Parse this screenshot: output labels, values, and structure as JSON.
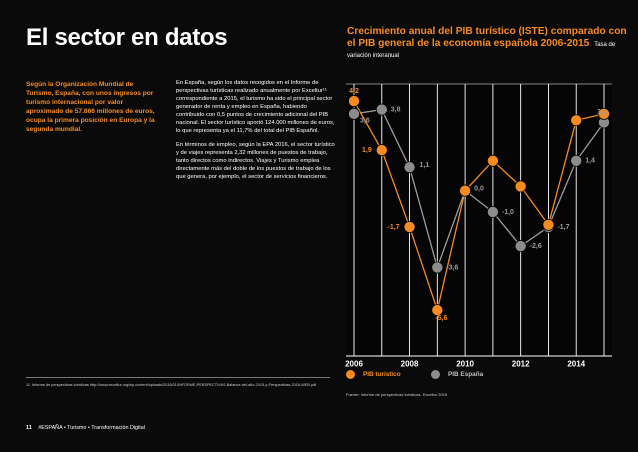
{
  "page": {
    "title": "El sector en datos",
    "intro": "Según la Organización Mundial de Turismo, España, con unos ingresos por turismo internacional por valor aproximado de 57.866 millones de euros, ocupa la primera posición en Europa y la segunda mundial.",
    "body_paragraphs": [
      "En España, según los datos recogidos en el Informe de perspectivas turísticas realizado anualmente por Exceltur¹¹ correspondiente a 2015, el turismo ha sido el principal sector generador de renta y empleo en España, habiendo contribuido con 0,5 puntos de crecimiento adicional del PIB nacional. El sector turístico aportó 124.000 millones de euros, lo que representa ya el 11,7% del total del PIB Español.",
      "En términos de empleo, según la EPA 2016, el sector turístico y de viajes representa 2,32 millones de puestos de trabajo, tanto directos como indirectos. Viajes y Turismo emplea directamente más del doble de los puestos de trabajo de los que genera, por ejemplo, el sector de servicios financieros."
    ],
    "footnote": "11. Informe de perspectivas turísticas http://www.exceltur.org/wp-content/uploads/2016/01/INFORME-PERSPECTIVAS-Balance-del-año-2015-y-Perspectivas-2016-WEB.pdf",
    "footer_page": "11",
    "footer_text": "#ESPAÑA • Turismo • Transformación Digital",
    "source": "Fuente: Informe de perspectivas turísticas. Exceltur 2015"
  },
  "chart_data": {
    "type": "line",
    "title": "Crecimiento anual del PIB turístico (ISTE) comparado con el PIB general de la economía española 2006-2015",
    "subtitle": "Tasa de variación interanual",
    "x": [
      2006,
      2007,
      2008,
      2009,
      2010,
      2011,
      2012,
      2013,
      2014,
      2015
    ],
    "x_tick_labels": [
      "2006",
      "2008",
      "2010",
      "2012",
      "2014"
    ],
    "ylim": [
      -7,
      5
    ],
    "grid": "vertical lines at every year",
    "legend_position": "bottom-left",
    "series": [
      {
        "name": "PIB turístico",
        "color": "#f68b1f",
        "values": [
          4.2,
          1.9,
          -1.7,
          -5.6,
          0.0,
          1.4,
          0.2,
          -1.6,
          3.3,
          3.6
        ],
        "labels": [
          "4,2",
          "1,9",
          "-1,7",
          "-5,6",
          "",
          "",
          "",
          "",
          "",
          ""
        ]
      },
      {
        "name": "PIB España",
        "color": "#8c8c8c",
        "values": [
          3.6,
          3.8,
          1.1,
          -3.6,
          0.0,
          -1.0,
          -2.6,
          -1.7,
          1.4,
          3.2
        ],
        "labels": [
          "3,6",
          "3,8",
          "1,1",
          "-3,6",
          "0,0",
          "-1,0",
          "-2,6",
          "-1,7",
          "1,4",
          "3,2"
        ]
      }
    ],
    "label_color_for_orange": "#f68b1f",
    "label_color_for_gray": "#9a9a9a"
  }
}
